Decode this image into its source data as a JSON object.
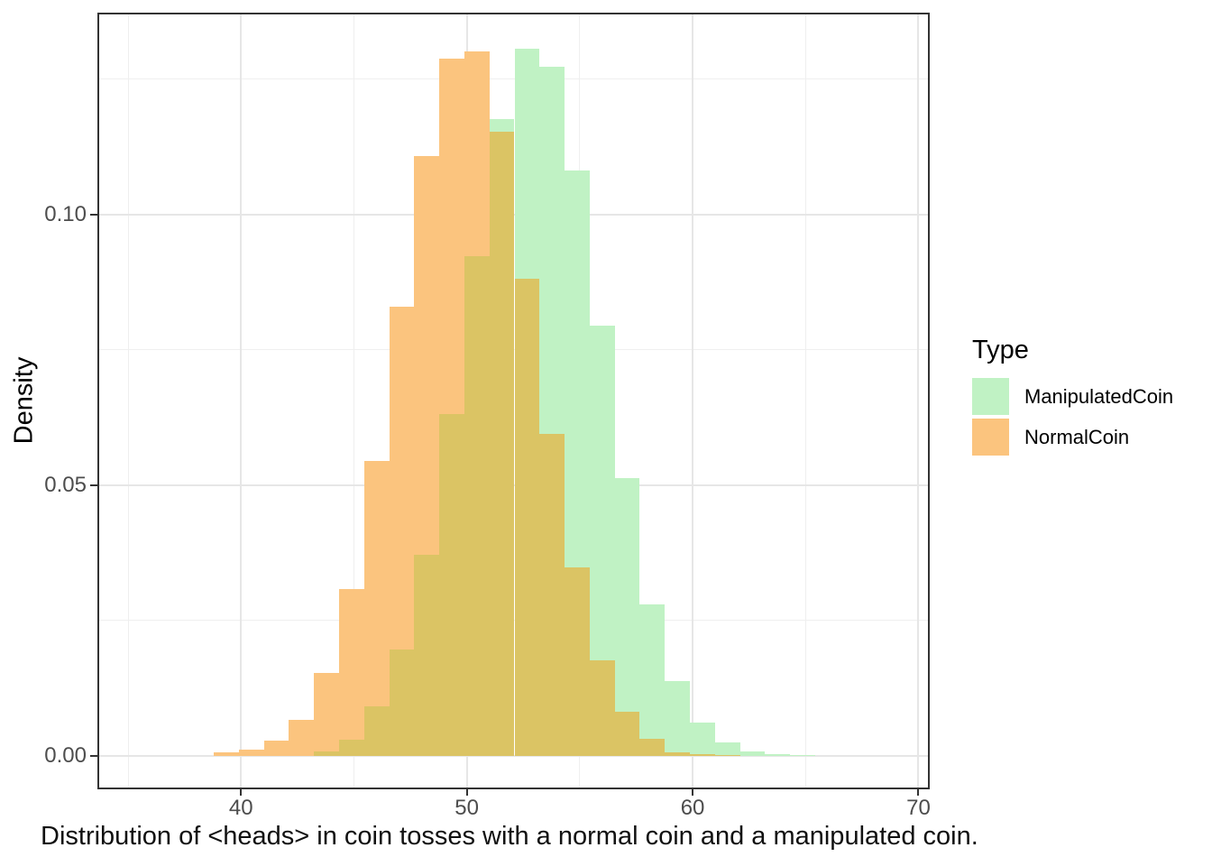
{
  "figure": {
    "background": "#FFFFFF",
    "caption": "Distribution of <heads> in coin tosses with a normal coin and a manipulated coin."
  },
  "axes": {
    "y_title": "Density",
    "x_tick_labels": [
      "40",
      "50",
      "60",
      "70"
    ],
    "y_tick_labels": [
      "0.00",
      "0.05",
      "0.10"
    ],
    "tick_color": "#333333",
    "tick_label_color": "#4D4D4D",
    "grid_major_color": "#E6E6E6",
    "grid_minor_color": "#EFEFEF",
    "panel_border_color": "#333333"
  },
  "legend": {
    "title": "Type",
    "items": [
      {
        "label": "ManipulatedCoin",
        "color": "#C0F2C4"
      },
      {
        "label": "NormalCoin",
        "color": "#FBC47E"
      }
    ]
  },
  "chart_data": {
    "type": "bar",
    "subtype": "overlaid-histogram",
    "title": "",
    "xlabel": "Distribution of <heads> in coin tosses with a normal coin and a manipulated coin.",
    "ylabel": "Density",
    "legend_title": "Type",
    "legend_position": "right",
    "grid": true,
    "x_ticks": [
      40,
      50,
      60,
      70
    ],
    "x_minor_ticks": [
      35,
      45,
      55,
      65
    ],
    "y_ticks": [
      0,
      0.05,
      0.1
    ],
    "y_minor_ticks": [
      0.025,
      0.075,
      0.125
    ],
    "xlim": [
      33.64,
      70.5
    ],
    "ylim": [
      -0.00617,
      0.13733
    ],
    "binwidth": 1.11,
    "overlap_color": "#DBC464",
    "series": [
      {
        "name": "NormalCoin",
        "color": "#FBC47E",
        "bin_start": 38.79,
        "densities": [
          0.0007,
          0.0011,
          0.0028,
          0.0067,
          0.0153,
          0.0308,
          0.0545,
          0.083,
          0.1109,
          0.1289,
          0.1301,
          0.1154,
          0.0881,
          0.0595,
          0.0349,
          0.0177,
          0.0082,
          0.0031,
          0.0007,
          0.0004,
          0.0002
        ]
      },
      {
        "name": "ManipulatedCoin",
        "color": "#C0F2C4",
        "bin_start": 43.23,
        "densities": [
          0.0009,
          0.003,
          0.0091,
          0.0196,
          0.0372,
          0.0632,
          0.0924,
          0.1177,
          0.1307,
          0.1274,
          0.1081,
          0.0795,
          0.0513,
          0.028,
          0.0139,
          0.0062,
          0.0025,
          0.0009,
          0.0004,
          0.0002
        ]
      }
    ]
  }
}
